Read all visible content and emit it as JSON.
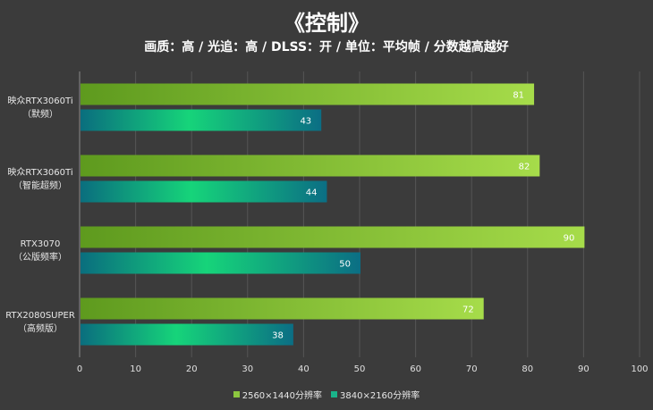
{
  "title": "《控制》",
  "subtitle": "画质：高 / 光追：高 / DLSS：开 / 单位：平均帧 / 分数越高越好",
  "legend": {
    "series0": "2560×1440分辨率",
    "series1": "3840×2160分辨率"
  },
  "colors": {
    "background": "#3b3b3b",
    "series0_start": "#5e9a1e",
    "series0_end": "#a6dc4a",
    "series1_start": "#0a6e7e",
    "series1_mid": "#16d47a",
    "series1_end": "#0b6e84"
  },
  "chart_data": {
    "type": "bar",
    "orientation": "horizontal",
    "categories": [
      [
        "映众RTX3060Ti",
        "（默频）"
      ],
      [
        "映众RTX3060Ti",
        "（智能超频）"
      ],
      [
        "RTX3070",
        "（公版频率）"
      ],
      [
        "RTX2080SUPER",
        "（高频版）"
      ]
    ],
    "series": [
      {
        "name": "2560×1440分辨率",
        "values": [
          81,
          82,
          90,
          72
        ]
      },
      {
        "name": "3840×2160分辨率",
        "values": [
          43,
          44,
          50,
          38
        ]
      }
    ],
    "xlim": [
      0,
      100
    ],
    "xticks": [
      0,
      10,
      20,
      30,
      40,
      50,
      60,
      70,
      80,
      90,
      100
    ],
    "grid": true,
    "legend_position": "bottom"
  }
}
